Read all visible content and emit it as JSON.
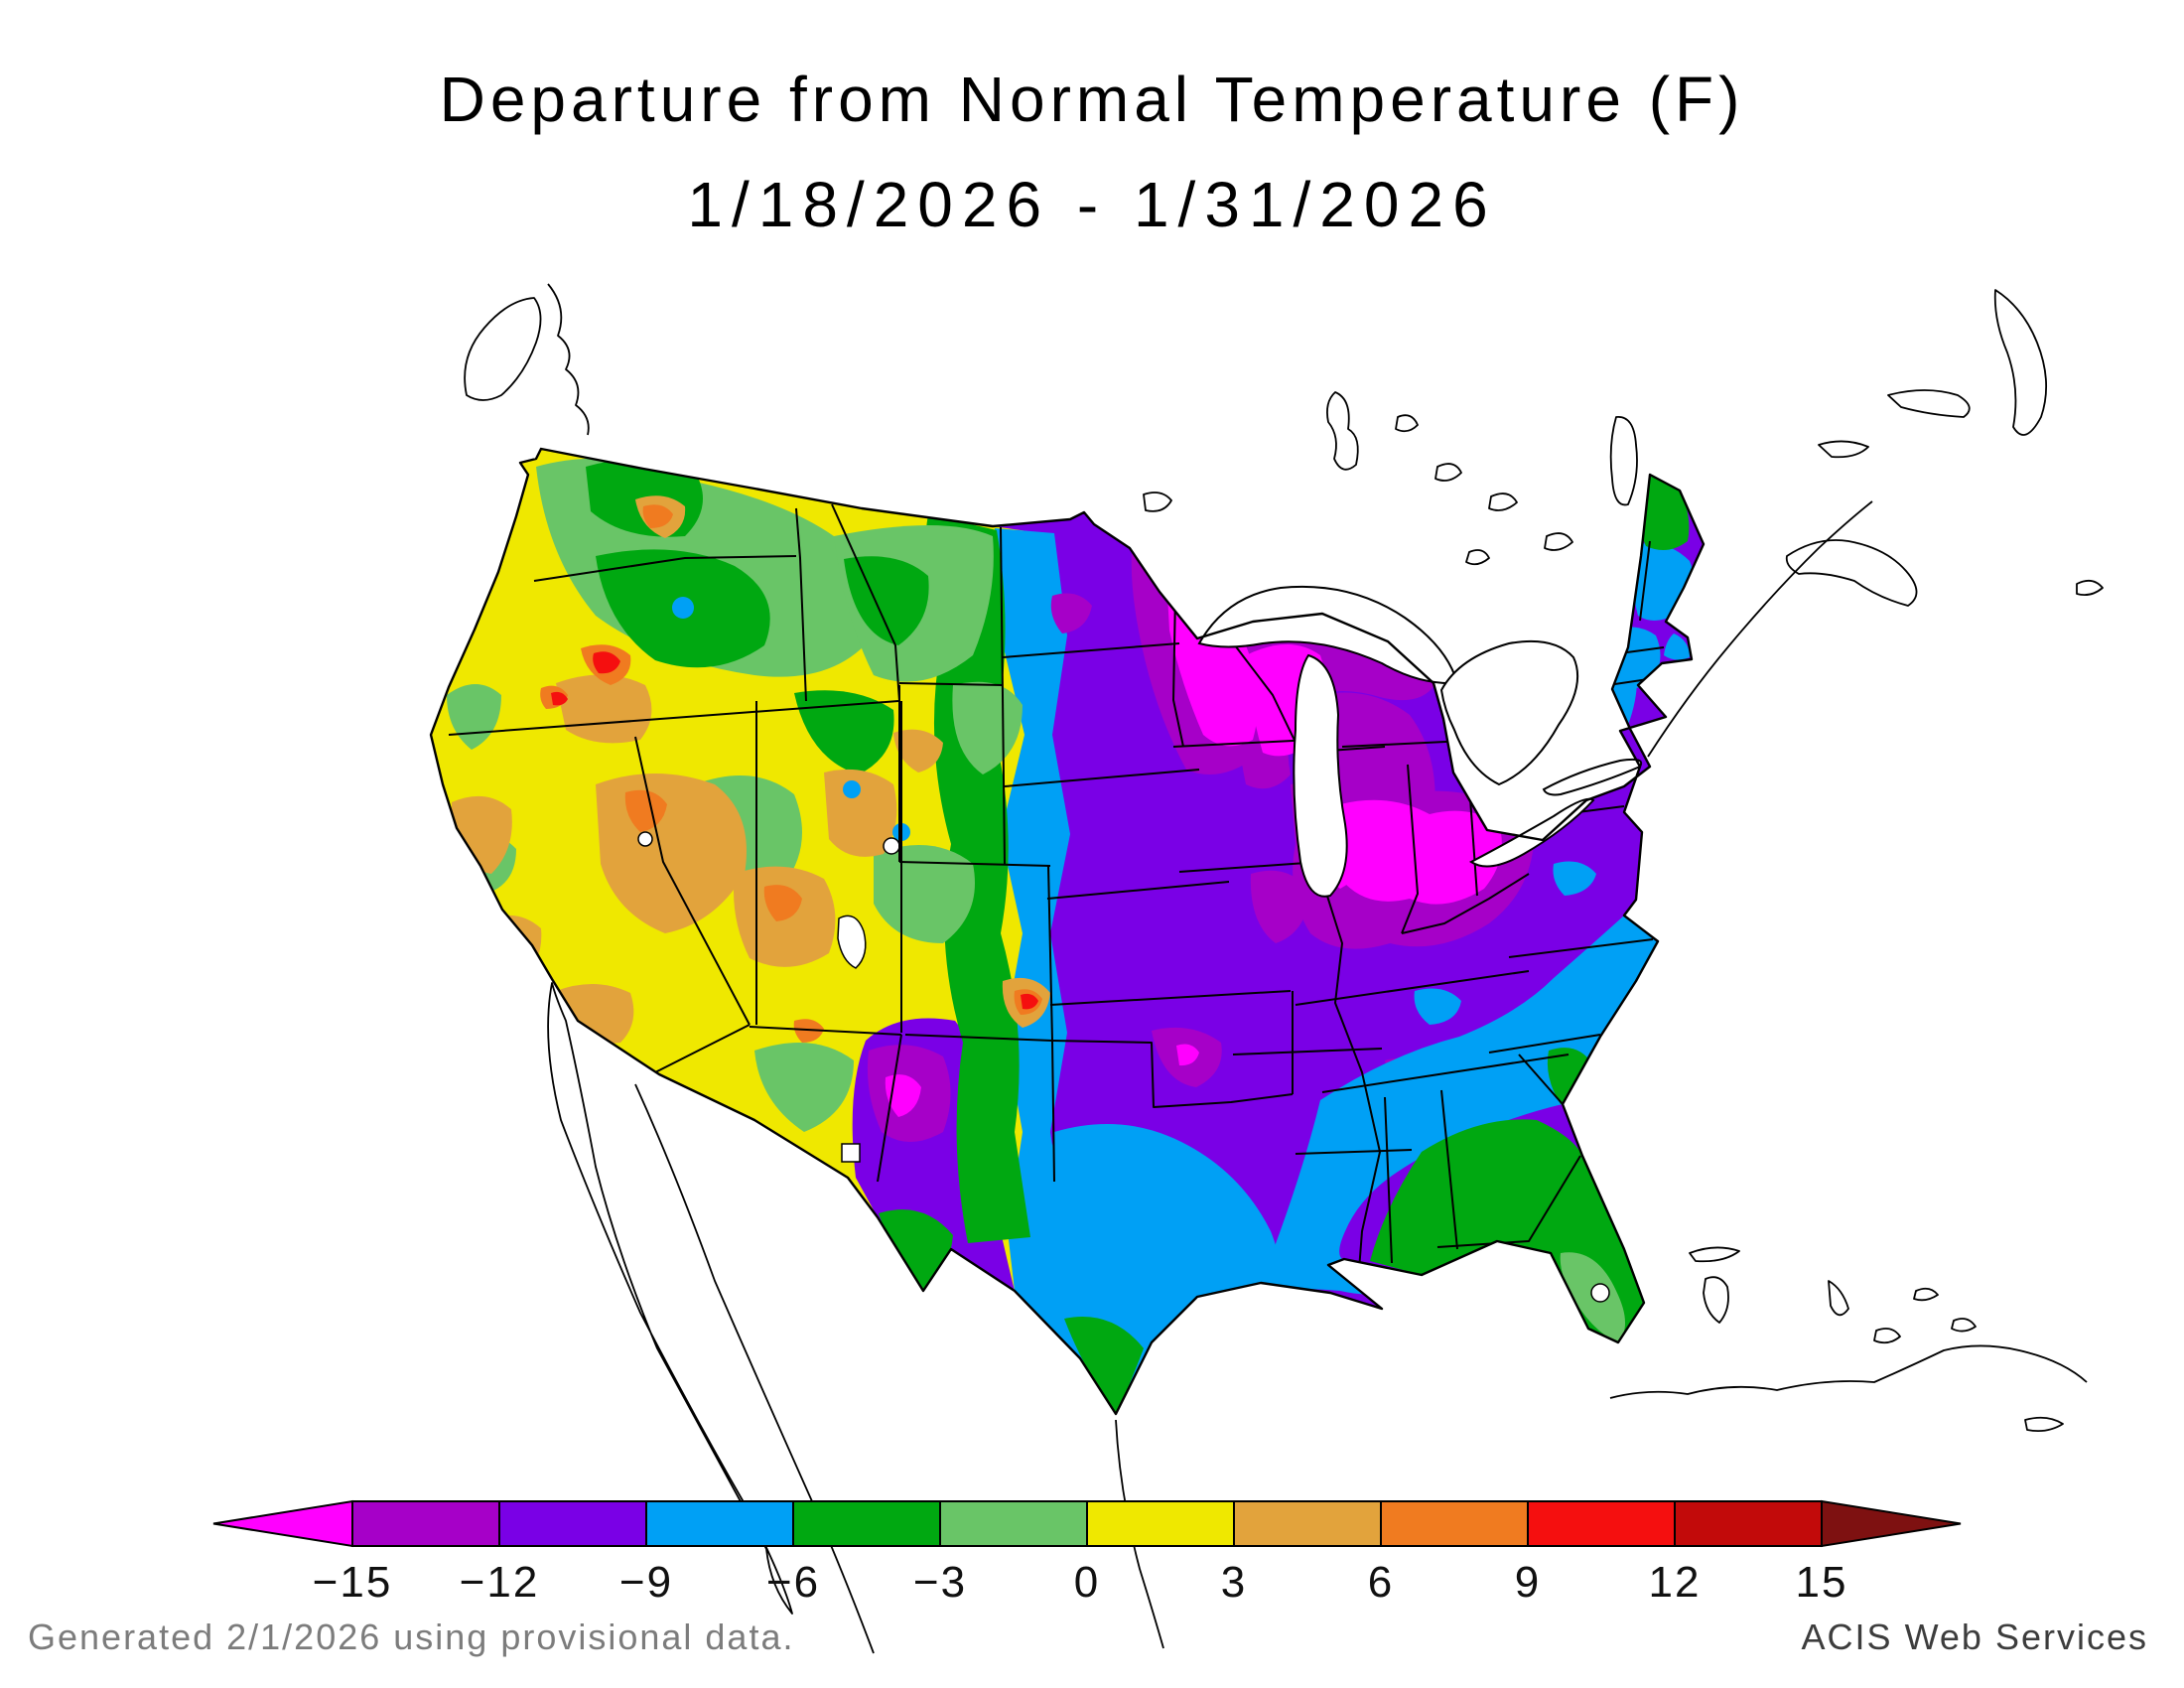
{
  "title": {
    "line1": "Departure from Normal Temperature (F)",
    "line2": "1/18/2026 - 1/31/2026"
  },
  "footer": {
    "left": "Generated 2/1/2026 using provisional data.",
    "right": "ACIS Web Services"
  },
  "chart_data": {
    "type": "heatmap",
    "variable": "Departure from Normal Temperature",
    "units": "F",
    "period_start": "1/18/2026",
    "period_end": "1/31/2026",
    "generated": "2/1/2026",
    "source": "ACIS Web Services",
    "projection_note": "Contiguous United States filled-contour anomaly map; Canada, Mexico, Great Lakes and Caribbean shown as white outlines",
    "palette": {
      "lt15": "#FF00FF",
      "n15_12": "#A600C8",
      "n12_9": "#7A00E6",
      "n9_6": "#00A0F5",
      "n6_3": "#00A811",
      "n3_0": "#69C567",
      "p0_3": "#EFE800",
      "p3_6": "#E2A33C",
      "p6_9": "#F07B20",
      "p9_12": "#F50F0F",
      "p12_15": "#C20A0A",
      "gt15": "#7E1111"
    },
    "colorbar": {
      "ticks": [
        -15,
        -12,
        -9,
        -6,
        -3,
        0,
        3,
        6,
        9,
        12,
        15
      ],
      "tick_labels": [
        "−15",
        "−12",
        "−9",
        "−6",
        "−3",
        "0",
        "3",
        "6",
        "9",
        "12",
        "15"
      ],
      "segments": [
        {
          "range": "below -15",
          "color": "#FF00FF",
          "shape": "left-arrow"
        },
        {
          "range": "-15 to -12",
          "color": "#A600C8"
        },
        {
          "range": "-12 to -9",
          "color": "#7A00E6"
        },
        {
          "range": "-9 to -6",
          "color": "#00A0F5"
        },
        {
          "range": "-6 to -3",
          "color": "#00A811"
        },
        {
          "range": "-3 to 0",
          "color": "#69C567"
        },
        {
          "range": "0 to 3",
          "color": "#EFE800"
        },
        {
          "range": "3 to 6",
          "color": "#E2A33C"
        },
        {
          "range": "6 to 9",
          "color": "#F07B20"
        },
        {
          "range": "9 to 12",
          "color": "#F50F0F"
        },
        {
          "range": "12 to 15",
          "color": "#C20A0A"
        },
        {
          "range": "above 15",
          "color": "#7E1111",
          "shape": "right-arrow"
        }
      ]
    },
    "regions": [
      {
        "area": "Pacific Northwest, Great Basin, California, Southwest",
        "departure_f": "-3 to +6, local spots +6 to +12"
      },
      {
        "area": "Rockies front range band (E Montana to E New Mexico)",
        "departure_f": "-6 to -3"
      },
      {
        "area": "Western High Plains strip and central/south Texas, Gulf Coast",
        "departure_f": "-9 to -6"
      },
      {
        "area": "Central and Northern Plains, mid-Mississippi valley, Mid-Atlantic",
        "departure_f": "-12 to -9"
      },
      {
        "area": "Minnesota, Wisconsin, Michigan, Illinois-Indiana-Ohio cores",
        "departure_f": "-15 to below -15"
      },
      {
        "area": "Southeast coastal plain (AL, GA, Carolinas, E Virginia)",
        "departure_f": "-9 to -6"
      },
      {
        "area": "Deep South, north Florida, south Texas tip, Big Bend",
        "departure_f": "-6 to -3"
      },
      {
        "area": "Central and south Florida",
        "departure_f": "-3 to 0"
      },
      {
        "area": "Northern Maine",
        "departure_f": "-6 to -3"
      }
    ]
  }
}
